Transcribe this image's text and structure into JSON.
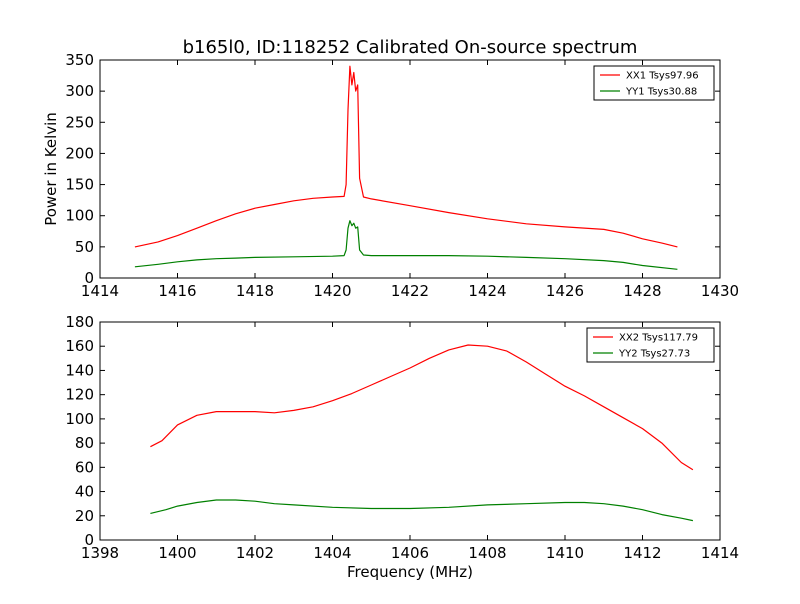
{
  "figure": {
    "title": "b165l0, ID:118252 Calibrated On-source spectrum"
  },
  "chart_data": [
    {
      "type": "line",
      "title": "b165l0, ID:118252 Calibrated On-source spectrum",
      "xlabel": "",
      "ylabel": "Power in Kelvin",
      "xlim": [
        1414,
        1430
      ],
      "ylim": [
        0,
        350
      ],
      "xticks": [
        1414,
        1416,
        1418,
        1420,
        1422,
        1424,
        1426,
        1428,
        1430
      ],
      "yticks": [
        0,
        50,
        100,
        150,
        200,
        250,
        300,
        350
      ],
      "grid": false,
      "legend_position": "top-right",
      "series": [
        {
          "name": "XX1 Tsys97.96",
          "color": "#ff0000",
          "points": [
            [
              1414.9,
              50
            ],
            [
              1415.5,
              58
            ],
            [
              1416,
              68
            ],
            [
              1416.5,
              80
            ],
            [
              1417,
              92
            ],
            [
              1417.5,
              103
            ],
            [
              1418,
              112
            ],
            [
              1418.5,
              118
            ],
            [
              1419,
              124
            ],
            [
              1419.5,
              128
            ],
            [
              1420,
              130
            ],
            [
              1420.3,
              131
            ],
            [
              1420.35,
              150
            ],
            [
              1420.4,
              270
            ],
            [
              1420.45,
              340
            ],
            [
              1420.5,
              310
            ],
            [
              1420.55,
              330
            ],
            [
              1420.6,
              300
            ],
            [
              1420.65,
              310
            ],
            [
              1420.7,
              160
            ],
            [
              1420.8,
              130
            ],
            [
              1421,
              127
            ],
            [
              1422,
              116
            ],
            [
              1423,
              105
            ],
            [
              1424,
              95
            ],
            [
              1425,
              87
            ],
            [
              1426,
              82
            ],
            [
              1427,
              78
            ],
            [
              1427.5,
              72
            ],
            [
              1428,
              63
            ],
            [
              1428.5,
              56
            ],
            [
              1428.9,
              50
            ]
          ]
        },
        {
          "name": "YY1 Tsys30.88",
          "color": "#008000",
          "points": [
            [
              1414.9,
              18
            ],
            [
              1415.5,
              22
            ],
            [
              1416,
              26
            ],
            [
              1416.5,
              29
            ],
            [
              1417,
              31
            ],
            [
              1417.5,
              32
            ],
            [
              1418,
              33
            ],
            [
              1419,
              34
            ],
            [
              1420,
              35
            ],
            [
              1420.3,
              36
            ],
            [
              1420.35,
              45
            ],
            [
              1420.4,
              80
            ],
            [
              1420.45,
              92
            ],
            [
              1420.5,
              84
            ],
            [
              1420.55,
              88
            ],
            [
              1420.6,
              80
            ],
            [
              1420.65,
              82
            ],
            [
              1420.7,
              45
            ],
            [
              1420.8,
              37
            ],
            [
              1421,
              36
            ],
            [
              1422,
              36
            ],
            [
              1423,
              36
            ],
            [
              1424,
              35
            ],
            [
              1425,
              33
            ],
            [
              1426,
              31
            ],
            [
              1427,
              28
            ],
            [
              1427.5,
              25
            ],
            [
              1428,
              20
            ],
            [
              1428.9,
              14
            ]
          ]
        }
      ]
    },
    {
      "type": "line",
      "title": "",
      "xlabel": "Frequency (MHz)",
      "ylabel": "",
      "xlim": [
        1398,
        1414
      ],
      "ylim": [
        0,
        180
      ],
      "xticks": [
        1398,
        1400,
        1402,
        1404,
        1406,
        1408,
        1410,
        1412,
        1414
      ],
      "yticks": [
        0,
        20,
        40,
        60,
        80,
        100,
        120,
        140,
        160,
        180
      ],
      "grid": false,
      "legend_position": "top-right",
      "series": [
        {
          "name": "XX2 Tsys117.79",
          "color": "#ff0000",
          "points": [
            [
              1399.3,
              77
            ],
            [
              1399.6,
              82
            ],
            [
              1400,
              95
            ],
            [
              1400.5,
              103
            ],
            [
              1401,
              106
            ],
            [
              1401.5,
              106
            ],
            [
              1402,
              106
            ],
            [
              1402.5,
              105
            ],
            [
              1403,
              107
            ],
            [
              1403.5,
              110
            ],
            [
              1404,
              115
            ],
            [
              1404.5,
              121
            ],
            [
              1405,
              128
            ],
            [
              1405.5,
              135
            ],
            [
              1406,
              142
            ],
            [
              1406.5,
              150
            ],
            [
              1407,
              157
            ],
            [
              1407.5,
              161
            ],
            [
              1408,
              160
            ],
            [
              1408.5,
              156
            ],
            [
              1409,
              147
            ],
            [
              1409.5,
              137
            ],
            [
              1410,
              127
            ],
            [
              1410.5,
              119
            ],
            [
              1411,
              110
            ],
            [
              1411.5,
              101
            ],
            [
              1412,
              92
            ],
            [
              1412.5,
              80
            ],
            [
              1413,
              64
            ],
            [
              1413.3,
              58
            ]
          ]
        },
        {
          "name": "YY2 Tsys27.73",
          "color": "#008000",
          "points": [
            [
              1399.3,
              22
            ],
            [
              1399.7,
              25
            ],
            [
              1400,
              28
            ],
            [
              1400.5,
              31
            ],
            [
              1401,
              33
            ],
            [
              1401.5,
              33
            ],
            [
              1402,
              32
            ],
            [
              1402.5,
              30
            ],
            [
              1403,
              29
            ],
            [
              1404,
              27
            ],
            [
              1405,
              26
            ],
            [
              1406,
              26
            ],
            [
              1407,
              27
            ],
            [
              1408,
              29
            ],
            [
              1409,
              30
            ],
            [
              1410,
              31
            ],
            [
              1410.5,
              31
            ],
            [
              1411,
              30
            ],
            [
              1411.5,
              28
            ],
            [
              1412,
              25
            ],
            [
              1412.5,
              21
            ],
            [
              1413,
              18
            ],
            [
              1413.3,
              16
            ]
          ]
        }
      ]
    }
  ]
}
